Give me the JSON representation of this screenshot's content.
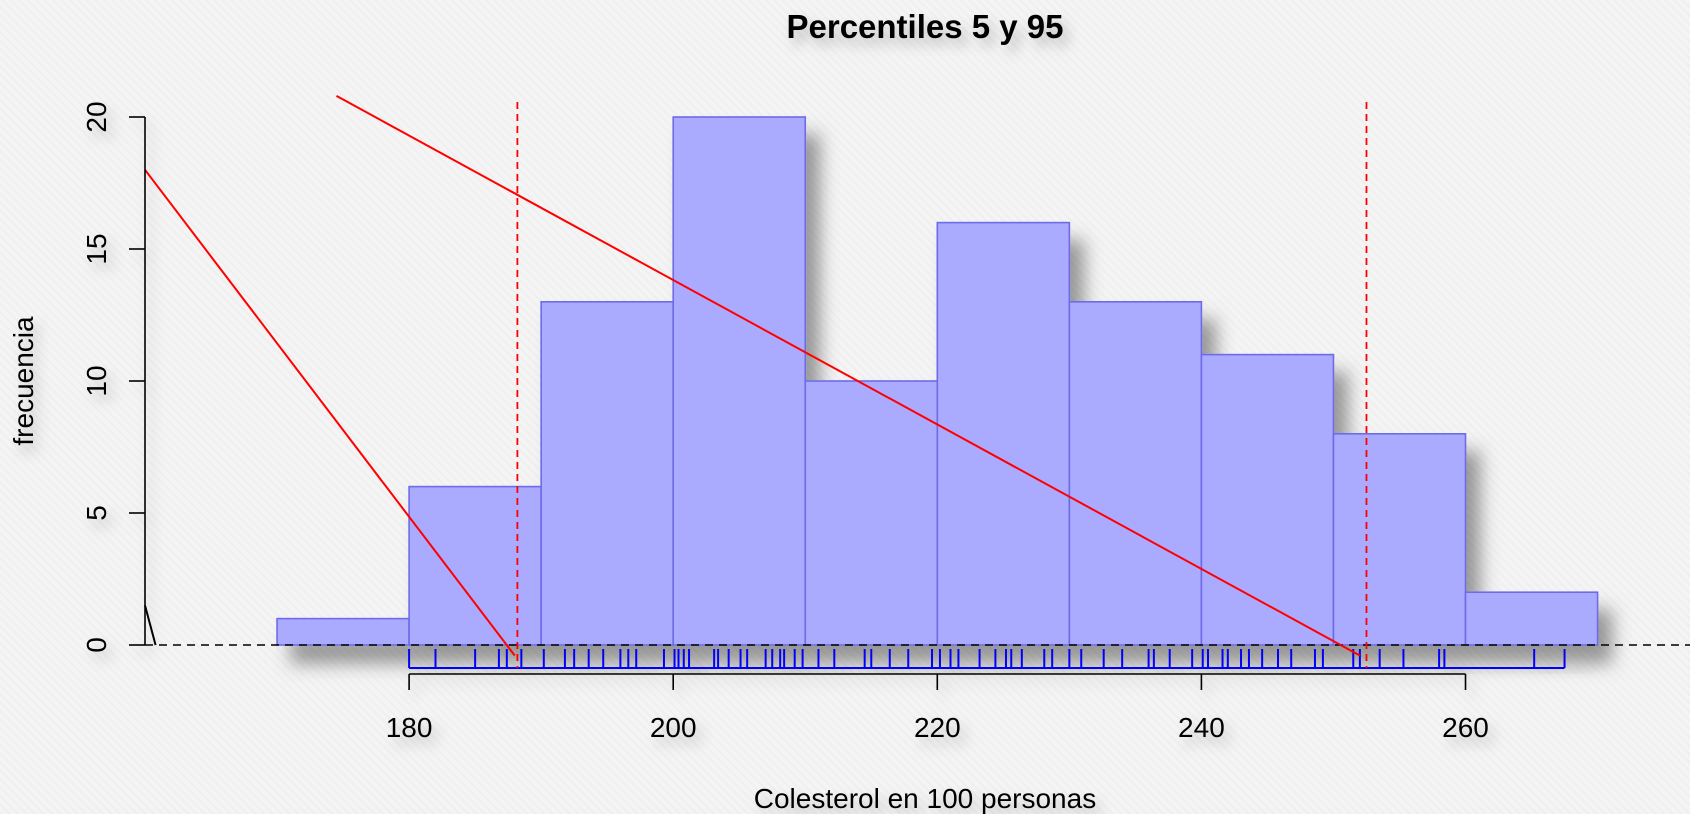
{
  "chart_data": {
    "type": "bar",
    "title": "Percentiles 5 y 95",
    "xlabel": "Colesterol en 100 personas",
    "ylabel": "frecuencia",
    "bins": [
      {
        "from": 170,
        "to": 180,
        "count": 1
      },
      {
        "from": 180,
        "to": 190,
        "count": 6
      },
      {
        "from": 190,
        "to": 200,
        "count": 13
      },
      {
        "from": 200,
        "to": 210,
        "count": 20
      },
      {
        "from": 210,
        "to": 220,
        "count": 10
      },
      {
        "from": 220,
        "to": 230,
        "count": 16
      },
      {
        "from": 230,
        "to": 240,
        "count": 13
      },
      {
        "from": 240,
        "to": 250,
        "count": 11
      },
      {
        "from": 250,
        "to": 260,
        "count": 8
      },
      {
        "from": 260,
        "to": 270,
        "count": 2
      }
    ],
    "x_ticks": [
      180,
      200,
      220,
      240,
      260
    ],
    "y_ticks": [
      0,
      5,
      10,
      15,
      20
    ],
    "xlim": [
      160,
      277
    ],
    "ylim": [
      0,
      20
    ],
    "percentiles": {
      "p5": 188.2,
      "p95": 252.5
    },
    "rug_range": [
      180,
      267.5
    ],
    "rug": [
      182,
      185,
      186.8,
      187.4,
      188.5,
      190.2,
      191.8,
      192.5,
      193.6,
      194.7,
      196,
      196.6,
      197.2,
      199.3,
      200.1,
      200.4,
      200.8,
      201.2,
      203.1,
      203.4,
      204.2,
      205.1,
      205.6,
      207,
      207.5,
      208.1,
      208.4,
      209.2,
      209.8,
      211,
      212.2,
      214.5,
      215,
      216.4,
      217.8,
      219.6,
      220.2,
      221,
      221.6,
      223.2,
      224.4,
      225.2,
      225.6,
      226.4,
      228.1,
      228.7,
      230,
      230.9,
      232.6,
      234,
      236,
      236.4,
      237.6,
      239.3,
      240.1,
      240.5,
      241.6,
      242,
      243,
      243.6,
      244.6,
      245.8,
      246.8,
      248.6,
      249.2,
      251.5,
      252,
      253.5,
      255.3,
      258,
      258.4,
      265.2
    ],
    "colors": {
      "bar_fill": "#aaaaff",
      "bar_stroke": "#6c6ce8",
      "percentile_line": "#ff0000",
      "rug": "#0000ff",
      "annotation": "#ff0000"
    },
    "annotations": [
      {
        "type": "line",
        "color": "#ff0000",
        "from": [
          174.5,
          20.8
        ],
        "to": [
          252,
          -0.4
        ]
      },
      {
        "type": "line",
        "color": "#ff0000",
        "from": [
          160,
          18
        ],
        "to": [
          188,
          -0.4
        ]
      },
      {
        "type": "line",
        "color": "#000000",
        "from": [
          160,
          1.5
        ],
        "to": [
          160.8,
          0
        ]
      }
    ],
    "grid": false,
    "baseline": "dashed"
  }
}
